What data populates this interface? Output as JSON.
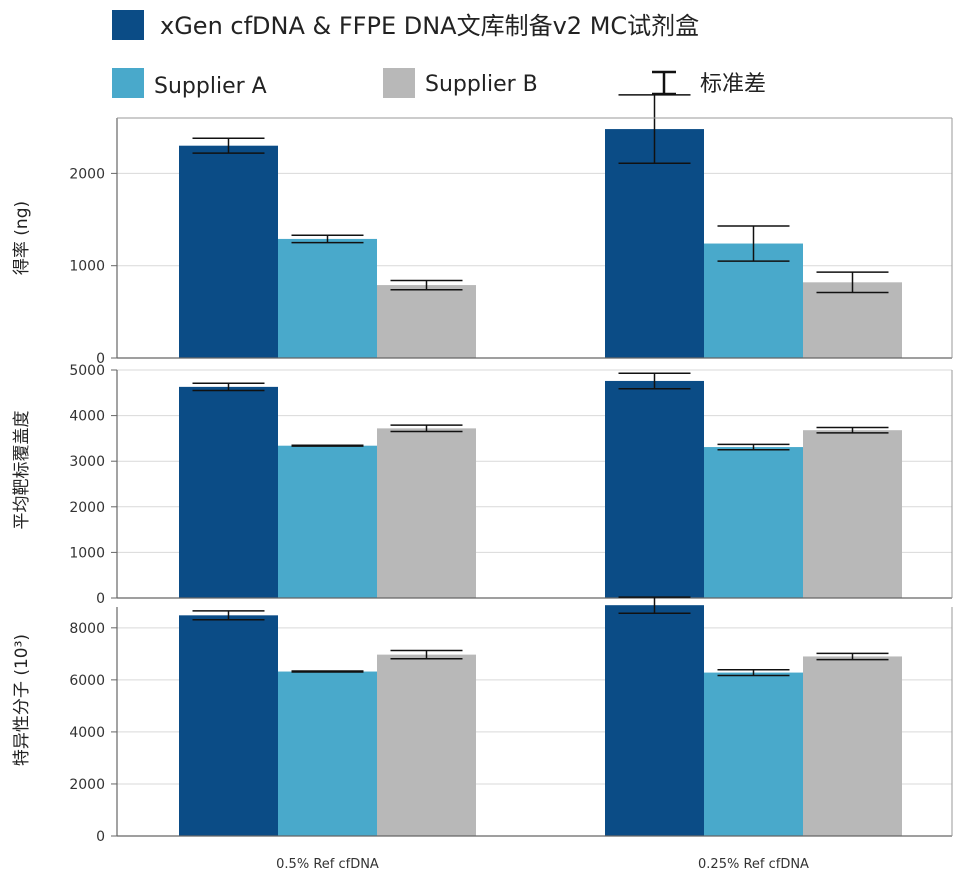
{
  "legend": [
    {
      "label": "xGen cfDNA & FFPE DNA文库制备v2 MC试剂盒",
      "color": "#0b4c86",
      "type": "swatch"
    },
    {
      "label": "Supplier A",
      "color": "#49a9cb",
      "type": "swatch"
    },
    {
      "label": "Supplier B",
      "color": "#b8b8b8",
      "type": "swatch"
    },
    {
      "label": "标准差",
      "color": "#111111",
      "type": "errorbar"
    }
  ],
  "chart_data": [
    {
      "type": "bar",
      "categories": [
        "0.5% Ref cfDNA",
        "0.25% Ref cfDNA"
      ],
      "ylabel": "得率 (ng)",
      "ylim": [
        0,
        2600
      ],
      "yticks": [
        0,
        1000,
        2000
      ],
      "grid": true,
      "series": [
        {
          "name": "xGen cfDNA & FFPE DNA文库制备v2 MC试剂盒",
          "color": "#0b4c86",
          "values": [
            2300,
            2480
          ],
          "errors": [
            80,
            370
          ]
        },
        {
          "name": "Supplier A",
          "color": "#49a9cb",
          "values": [
            1290,
            1240
          ],
          "errors": [
            40,
            190
          ]
        },
        {
          "name": "Supplier B",
          "color": "#b8b8b8",
          "values": [
            790,
            820
          ],
          "errors": [
            50,
            110
          ]
        }
      ]
    },
    {
      "type": "bar",
      "categories": [
        "0.5% Ref cfDNA",
        "0.25% Ref cfDNA"
      ],
      "ylabel": "平均靶标覆盖度",
      "ylim": [
        0,
        5000
      ],
      "yticks": [
        0,
        1000,
        2000,
        3000,
        4000,
        5000
      ],
      "grid": true,
      "series": [
        {
          "name": "xGen cfDNA & FFPE DNA文库制备v2 MC试剂盒",
          "color": "#0b4c86",
          "values": [
            4630,
            4760
          ],
          "errors": [
            80,
            170
          ]
        },
        {
          "name": "Supplier A",
          "color": "#49a9cb",
          "values": [
            3340,
            3310
          ],
          "errors": [
            10,
            60
          ]
        },
        {
          "name": "Supplier B",
          "color": "#b8b8b8",
          "values": [
            3720,
            3680
          ],
          "errors": [
            70,
            60
          ]
        }
      ]
    },
    {
      "type": "bar",
      "categories": [
        "0.5% Ref cfDNA",
        "0.25% Ref cfDNA"
      ],
      "ylabel": "特异性分子 (10³)",
      "ylim": [
        0,
        8800
      ],
      "yticks": [
        0,
        2000,
        4000,
        6000,
        8000
      ],
      "grid": true,
      "series": [
        {
          "name": "xGen cfDNA & FFPE DNA文库制备v2 MC试剂盒",
          "color": "#0b4c86",
          "values": [
            8480,
            8870
          ],
          "errors": [
            170,
            310
          ]
        },
        {
          "name": "Supplier A",
          "color": "#49a9cb",
          "values": [
            6320,
            6280
          ],
          "errors": [
            20,
            110
          ]
        },
        {
          "name": "Supplier B",
          "color": "#b8b8b8",
          "values": [
            6970,
            6900
          ],
          "errors": [
            160,
            120
          ]
        }
      ]
    }
  ]
}
